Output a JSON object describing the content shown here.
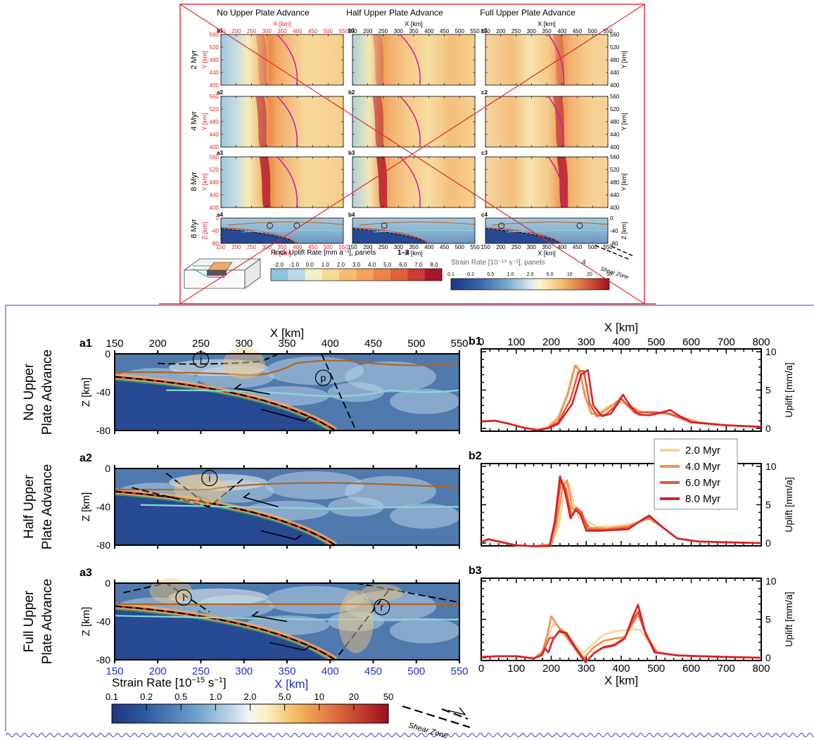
{
  "inset": {
    "col_titles": [
      "No Upper Plate Advance",
      "Half Upper Plate Advance",
      "Full Upper Plate Advance"
    ],
    "row_labels": [
      "2 Myr",
      "4 Myr",
      "8 Myr",
      "8 Myr"
    ],
    "panel_ids": [
      [
        "a1",
        "b1",
        "c1"
      ],
      [
        "a2",
        "b2",
        "c2"
      ],
      [
        "a3",
        "b3",
        "c3"
      ],
      [
        "a4",
        "b4",
        "c4"
      ]
    ],
    "x_label": "X [km]",
    "y_label": "Y [km]",
    "z_label": "Z [km]",
    "x_ticks": [
      150,
      200,
      250,
      300,
      350,
      400,
      450,
      500,
      550
    ],
    "y_ticks": [
      400,
      440,
      480,
      520,
      560
    ],
    "z_ticks": [
      0,
      -40,
      -80
    ],
    "uplift_colorbar": {
      "title": "Rock Uplift Rate [mm a⁻¹], panels ",
      "title_bold": "1–3",
      "ticks": [
        "-2.0",
        "-1.0",
        "0.0",
        "1.0",
        "2.0",
        "3.0",
        "4.0",
        "5.0",
        "6.0",
        "7.0",
        "8.0"
      ],
      "colors": [
        "#8fc3df",
        "#b9d9e4",
        "#f3efc4",
        "#f8d991",
        "#f6bd71",
        "#f3a35c",
        "#ee8448",
        "#e2613b",
        "#cc3a31",
        "#a8182a"
      ]
    },
    "strain_colorbar": {
      "title": "Strain Rate [10⁻¹⁵ s⁻¹], panels ",
      "title_bold": "4",
      "ticks": [
        "0.1",
        "0.2",
        "0.5",
        "1.0",
        "2.0",
        "5.0",
        "10",
        "20",
        "50"
      ]
    },
    "shear_zone_label": "Shear Zone"
  },
  "main": {
    "row_labels": [
      [
        "No Upper",
        "Plate Advance"
      ],
      [
        "Half Upper",
        "Plate Advance"
      ],
      [
        "Full Upper",
        "Plate Advance"
      ]
    ],
    "left_panel_ids": [
      "a1",
      "a2",
      "a3"
    ],
    "right_panel_ids": [
      "b1",
      "b2",
      "b3"
    ],
    "x_label": "X [km]",
    "z_label": "Z [km]",
    "uplift_label": "Uplift [mm/a]",
    "circle_labels": [
      [
        "i",
        "p"
      ],
      [
        "i"
      ],
      [
        "i",
        "r"
      ]
    ],
    "strain_colorbar": {
      "title": "Strain Rate [10",
      "title_sup": "−15",
      "title_unit": " s",
      "title_sup2": "−1",
      "title_end": "]",
      "ticks": [
        "0.1",
        "0.2",
        "0.5",
        "1.0",
        "2.0",
        "5.0",
        "10",
        "20",
        "50"
      ],
      "colors": [
        "#223e88",
        "#2f5ea6",
        "#4e86bd",
        "#86b3d4",
        "#c3dce8",
        "#fdf5d3",
        "#f6c96f",
        "#e98748",
        "#d24a33",
        "#a0141f"
      ]
    },
    "shear_zone_label": "Shear Zone",
    "colors": {
      "background_strain": "#5079ad",
      "slab": "#274a92",
      "brown_line": "#b5651d",
      "cyan_line": "#86d8d6",
      "green_line": "#2f9b6b",
      "axis_x_bottom": "#1f2fd0",
      "inset_red": "#e32b2b"
    }
  },
  "chart_data": {
    "type": "line",
    "x_label": "X [km]",
    "y_label": "Uplift [mm/a]",
    "xlim": [
      0,
      800
    ],
    "ylim": [
      0,
      10
    ],
    "x_ticks": [
      0,
      100,
      200,
      300,
      400,
      500,
      600,
      700,
      800
    ],
    "y_ticks": [
      0,
      5,
      10
    ],
    "legend_position": "right",
    "panels": [
      {
        "id": "b1",
        "series": [
          {
            "name": "2.0 Myr",
            "color": "#f8d493",
            "x": [
              0,
              40,
              80,
              120,
              160,
              190,
              220,
              245,
              262,
              275,
              290,
              310,
              335,
              360,
              380,
              400,
              430,
              460,
              500,
              540,
              570,
              620,
              700,
              800
            ],
            "y": [
              0.9,
              1.0,
              0.6,
              0.1,
              -0.2,
              0.2,
              1.6,
              4.4,
              7.4,
              8.2,
              5.6,
              2.6,
              2.0,
              2.8,
              3.2,
              3.4,
              2.8,
              2.2,
              2.0,
              1.9,
              1.5,
              0.8,
              0.4,
              0.2
            ]
          },
          {
            "name": "4.0 Myr",
            "color": "#f2924e",
            "x": [
              0,
              40,
              80,
              120,
              160,
              190,
              220,
              250,
              268,
              282,
              296,
              315,
              340,
              365,
              385,
              400,
              420,
              450,
              480,
              510,
              540,
              570,
              620,
              700,
              800
            ],
            "y": [
              0.9,
              1.0,
              0.6,
              0.1,
              -0.2,
              0.1,
              1.2,
              4.8,
              8.2,
              7.5,
              4.2,
              1.9,
              1.9,
              2.7,
              3.4,
              3.8,
              3.0,
              2.2,
              2.0,
              2.0,
              1.9,
              1.5,
              0.8,
              0.4,
              0.2
            ]
          },
          {
            "name": "6.0 Myr",
            "color": "#e8563b",
            "x": [
              0,
              40,
              80,
              120,
              160,
              190,
              220,
              255,
              278,
              293,
              310,
              330,
              355,
              380,
              398,
              418,
              440,
              470,
              500,
              530,
              560,
              600,
              700,
              800
            ],
            "y": [
              0.9,
              1.0,
              0.6,
              0.1,
              -0.2,
              0.0,
              0.8,
              3.8,
              7.4,
              7.5,
              3.2,
              1.6,
              1.8,
              2.8,
              4.0,
              3.0,
              2.0,
              2.1,
              2.1,
              2.0,
              1.5,
              0.8,
              0.4,
              0.2
            ]
          },
          {
            "name": "8.0 Myr",
            "color": "#d81f27",
            "x": [
              0,
              40,
              80,
              120,
              160,
              190,
              220,
              260,
              285,
              305,
              320,
              345,
              370,
              390,
              405,
              425,
              450,
              480,
              510,
              540,
              560,
              600,
              700,
              800
            ],
            "y": [
              0.9,
              1.0,
              0.6,
              0.1,
              -0.2,
              0.0,
              0.6,
              3.2,
              7.0,
              7.6,
              3.0,
              1.6,
              1.9,
              3.2,
              4.4,
              3.0,
              1.8,
              1.7,
              2.0,
              2.4,
              1.8,
              0.8,
              0.4,
              0.2
            ]
          }
        ]
      },
      {
        "id": "b2",
        "series": [
          {
            "name": "2.0 Myr",
            "color": "#f8d493",
            "x": [
              0,
              20,
              50,
              100,
              150,
              200,
              220,
              235,
              250,
              265,
              280,
              300,
              330,
              380,
              430,
              470,
              485,
              520,
              560,
              620,
              700,
              800
            ],
            "y": [
              0.1,
              0.5,
              0.2,
              -0.3,
              -0.4,
              -0.1,
              2.0,
              6.0,
              7.8,
              5.0,
              3.2,
              3.0,
              2.1,
              2.2,
              2.5,
              3.1,
              3.1,
              2.0,
              0.6,
              0.2,
              0.1,
              0.0
            ]
          },
          {
            "name": "4.0 Myr",
            "color": "#f2924e",
            "x": [
              0,
              20,
              50,
              100,
              150,
              200,
              215,
              232,
              245,
              260,
              275,
              290,
              310,
              360,
              420,
              465,
              480,
              520,
              560,
              620,
              700,
              800
            ],
            "y": [
              0.1,
              0.5,
              0.2,
              -0.3,
              -0.4,
              -0.2,
              2.4,
              7.2,
              8.2,
              4.5,
              4.2,
              3.3,
              2.0,
              1.9,
              2.2,
              3.0,
              3.2,
              2.0,
              0.6,
              0.2,
              0.1,
              0.0
            ]
          },
          {
            "name": "6.0 Myr",
            "color": "#e8563b",
            "x": [
              0,
              20,
              50,
              100,
              150,
              195,
              212,
              228,
              242,
              258,
              272,
              287,
              305,
              350,
              420,
              465,
              480,
              520,
              560,
              620,
              700,
              800
            ],
            "y": [
              0.1,
              0.5,
              0.2,
              -0.3,
              -0.4,
              -0.3,
              2.8,
              8.3,
              7.0,
              3.6,
              4.6,
              4.0,
              1.8,
              1.7,
              2.0,
              3.1,
              3.4,
              2.0,
              0.6,
              0.2,
              0.1,
              0.0
            ]
          },
          {
            "name": "8.0 Myr",
            "color": "#d81f27",
            "x": [
              0,
              20,
              50,
              100,
              150,
              195,
              210,
              225,
              240,
              255,
              270,
              283,
              300,
              340,
              420,
              465,
              480,
              520,
              560,
              620,
              700,
              800
            ],
            "y": [
              0.1,
              0.5,
              0.2,
              -0.3,
              -0.4,
              -0.4,
              2.8,
              8.7,
              6.6,
              3.2,
              4.3,
              3.8,
              1.6,
              1.6,
              1.8,
              3.2,
              3.6,
              2.0,
              0.6,
              0.2,
              0.1,
              0.0
            ]
          }
        ]
      },
      {
        "id": "b3",
        "series": [
          {
            "name": "2.0 Myr",
            "color": "#f8d493",
            "x": [
              0,
              50,
              100,
              150,
              175,
              190,
              205,
              222,
              240,
              262,
              290,
              320,
              350,
              380,
              410,
              435,
              455,
              480,
              510,
              560,
              620,
              700,
              800
            ],
            "y": [
              0.1,
              0.2,
              0.2,
              -0.1,
              0.5,
              2.6,
              4.4,
              4.0,
              3.3,
              2.0,
              0.6,
              1.8,
              3.0,
              3.4,
              3.6,
              3.7,
              3.6,
              2.0,
              0.6,
              0.3,
              0.2,
              0.1,
              0.0
            ]
          },
          {
            "name": "4.0 Myr",
            "color": "#f2924e",
            "x": [
              0,
              50,
              100,
              150,
              175,
              190,
              200,
              218,
              235,
              255,
              290,
              320,
              350,
              380,
              410,
              430,
              448,
              470,
              500,
              560,
              620,
              700,
              800
            ],
            "y": [
              0.1,
              0.2,
              0.2,
              -0.1,
              0.8,
              3.2,
              5.4,
              4.2,
              3.2,
              2.0,
              -0.2,
              1.3,
              2.2,
              2.5,
              2.7,
              4.2,
              5.6,
              3.2,
              0.7,
              0.3,
              0.2,
              0.1,
              0.0
            ]
          },
          {
            "name": "6.0 Myr",
            "color": "#e8563b",
            "x": [
              0,
              50,
              100,
              150,
              175,
              185,
              195,
              208,
              225,
              245,
              270,
              300,
              325,
              350,
              380,
              410,
              430,
              448,
              470,
              500,
              560,
              620,
              700,
              800
            ],
            "y": [
              0.1,
              0.2,
              0.2,
              -0.1,
              0.4,
              1.6,
              2.6,
              2.6,
              3.6,
              3.2,
              1.3,
              -0.5,
              0.7,
              1.4,
              1.7,
              2.6,
              4.6,
              6.0,
              3.0,
              0.7,
              0.3,
              0.2,
              0.1,
              0.0
            ]
          },
          {
            "name": "8.0 Myr",
            "color": "#d81f27",
            "x": [
              0,
              50,
              100,
              150,
              172,
              182,
              192,
              205,
              222,
              242,
              270,
              298,
              322,
              348,
              380,
              410,
              432,
              448,
              468,
              495,
              560,
              620,
              700,
              800
            ],
            "y": [
              0.1,
              0.2,
              0.2,
              -0.1,
              0.3,
              1.2,
              0.7,
              2.4,
              3.4,
              3.2,
              1.2,
              -0.6,
              0.6,
              1.3,
              1.6,
              2.5,
              5.2,
              6.9,
              3.4,
              0.7,
              0.3,
              0.2,
              0.1,
              0.0
            ]
          }
        ]
      }
    ]
  }
}
